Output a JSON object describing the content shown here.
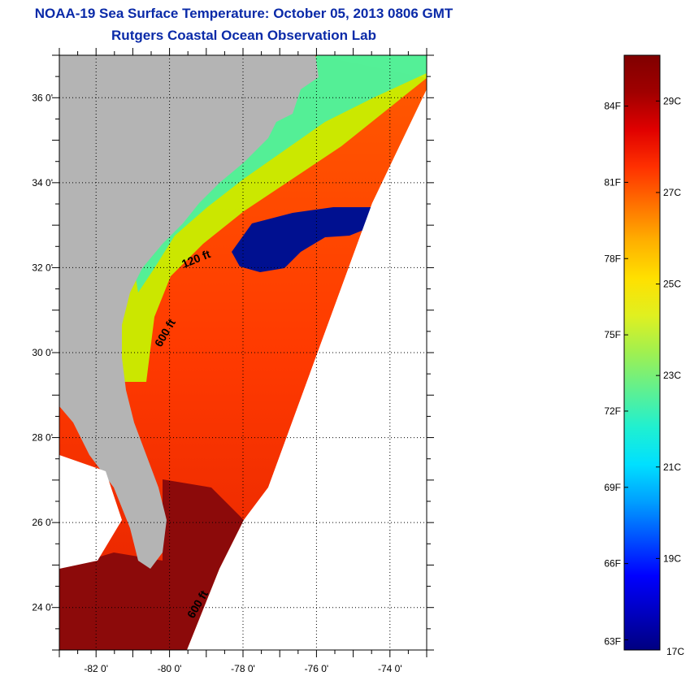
{
  "header": {
    "title": "NOAA-19 Sea Surface Temperature:  October 05, 2013 0806 GMT",
    "subtitle": "Rutgers Coastal Ocean Observation Lab"
  },
  "map": {
    "lat_labels": [
      "36 0'",
      "34 0'",
      "32 0'",
      "30 0'",
      "28 0'",
      "26 0'",
      "24 0'"
    ],
    "lon_labels": [
      "-82 0'",
      "-80 0'",
      "-78 0'",
      "-76 0'",
      "-74 0'"
    ],
    "lat_values": [
      36,
      34,
      32,
      30,
      28,
      26,
      24
    ],
    "lon_values": [
      -82,
      -80,
      -78,
      -76,
      -74
    ],
    "lat_range": [
      23,
      37
    ],
    "lon_range": [
      -83,
      -73
    ],
    "contours": [
      "120 ft",
      "600 ft",
      "600 ft"
    ],
    "colors": {
      "land": "#b4b4b4",
      "nodata": "#ffffff",
      "cold": "#000a8c",
      "warm": "#ff6a00",
      "hot": "#8c0a0a",
      "coastal": "#c8f000"
    }
  },
  "colorbar": {
    "fahrenheit": [
      "84F",
      "81F",
      "78F",
      "75F",
      "72F",
      "69F",
      "66F",
      "63F"
    ],
    "celsius": [
      "29C",
      "27C",
      "25C",
      "23C",
      "21C",
      "19C",
      "17C"
    ],
    "range_c": [
      17,
      30
    ],
    "stops": [
      "#000080",
      "#0000c0",
      "#0000ff",
      "#0050ff",
      "#00a0ff",
      "#00e0ff",
      "#20f0d0",
      "#60f090",
      "#a0f050",
      "#e0f020",
      "#ffe000",
      "#ffb000",
      "#ff7000",
      "#ff3000",
      "#e00000",
      "#a00000",
      "#800000"
    ]
  }
}
